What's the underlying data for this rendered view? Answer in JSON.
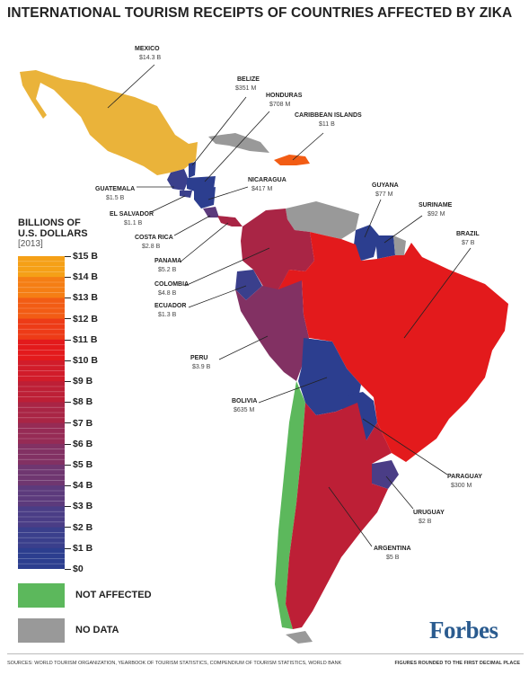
{
  "title": "INTERNATIONAL TOURISM RECEIPTS OF COUNTRIES AFFECTED BY ZIKA",
  "legend": {
    "title_line1": "BILLIONS OF",
    "title_line2": "U.S. DOLLARS",
    "unit": "[2013]",
    "ticks": [
      "$15 B",
      "$14 B",
      "$13 B",
      "$12 B",
      "$11 B",
      "$10 B",
      "$9 B",
      "$8 B",
      "$7 B",
      "$6 B",
      "$5 B",
      "$4 B",
      "$3 B",
      "$2 B",
      "$1 B",
      "$0"
    ],
    "not_affected": "NOT AFFECTED",
    "no_data": "NO DATA",
    "colors": {
      "not_affected": "#5cb85c",
      "no_data": "#999999",
      "scale": [
        "#2c3e8f",
        "#3a3f8c",
        "#4a3d86",
        "#5c3a7c",
        "#6f3670",
        "#823163",
        "#962b55",
        "#a92545",
        "#bd1f36",
        "#d11c2a",
        "#e31a1c",
        "#ed3b17",
        "#f25c14",
        "#f57e14",
        "#f5a017",
        "#eebc3a"
      ]
    }
  },
  "countries": [
    {
      "name": "MEXICO",
      "value": "$14.3 B"
    },
    {
      "name": "BELIZE",
      "value": "$351 M"
    },
    {
      "name": "HONDURAS",
      "value": "$708 M"
    },
    {
      "name": "CARIBBEAN ISLANDS",
      "value": "$11 B"
    },
    {
      "name": "GUATEMALA",
      "value": "$1.5 B"
    },
    {
      "name": "NICARAGUA",
      "value": "$417 M"
    },
    {
      "name": "EL SALVADOR",
      "value": "$1.1 B"
    },
    {
      "name": "COSTA RICA",
      "value": "$2.8 B"
    },
    {
      "name": "PANAMA",
      "value": "$5.2 B"
    },
    {
      "name": "COLOMBIA",
      "value": "$4.8 B"
    },
    {
      "name": "ECUADOR",
      "value": "$1.3 B"
    },
    {
      "name": "GUYANA",
      "value": "$77 M"
    },
    {
      "name": "SURINAME",
      "value": "$92 M"
    },
    {
      "name": "BRAZIL",
      "value": "$7 B"
    },
    {
      "name": "PERU",
      "value": "$3.9 B"
    },
    {
      "name": "BOLIVIA",
      "value": "$635 M"
    },
    {
      "name": "PARAGUAY",
      "value": "$300 M"
    },
    {
      "name": "URUGUAY",
      "value": "$2 B"
    },
    {
      "name": "ARGENTINA",
      "value": "$5 B"
    }
  ],
  "brand": "Forbes",
  "footer": {
    "sources": "SOURCES: WORLD TOURISM ORGANIZATION, YEARBOOK OF TOURISM STATISTICS, COMPENDIUM OF TOURISM STATISTICS, WORLD BANK",
    "rounding": "FIGURES ROUNDED TO THE FIRST DECIMAL PLACE"
  }
}
